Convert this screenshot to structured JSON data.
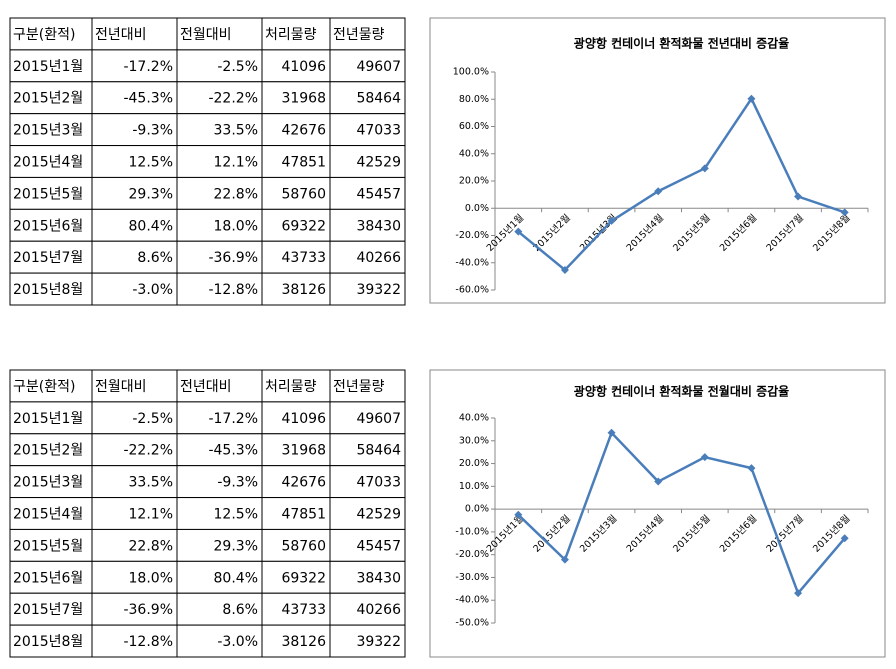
{
  "tables": [
    {
      "header": [
        "구분(환적)",
        "전년대비",
        "전월대비",
        "처리물량",
        "전년물량"
      ],
      "rows": [
        [
          "2015년1월",
          "-17.2%",
          "-2.5%",
          "41096",
          "49607"
        ],
        [
          "2015년2월",
          "-45.3%",
          "-22.2%",
          "31968",
          "58464"
        ],
        [
          "2015년3월",
          "-9.3%",
          "33.5%",
          "42676",
          "47033"
        ],
        [
          "2015년4월",
          "12.5%",
          "12.1%",
          "47851",
          "42529"
        ],
        [
          "2015년5월",
          "29.3%",
          "22.8%",
          "58760",
          "45457"
        ],
        [
          "2015년6월",
          "80.4%",
          "18.0%",
          "69322",
          "38430"
        ],
        [
          "2015년7월",
          "8.6%",
          "-36.9%",
          "43733",
          "40266"
        ],
        [
          "2015년8월",
          "-3.0%",
          "-12.8%",
          "38126",
          "39322"
        ]
      ]
    },
    {
      "header": [
        "구분(환적)",
        "전월대비",
        "전년대비",
        "처리물량",
        "전년물량"
      ],
      "rows": [
        [
          "2015년1월",
          "-2.5%",
          "-17.2%",
          "41096",
          "49607"
        ],
        [
          "2015년2월",
          "-22.2%",
          "-45.3%",
          "31968",
          "58464"
        ],
        [
          "2015년3월",
          "33.5%",
          "-9.3%",
          "42676",
          "47033"
        ],
        [
          "2015년4월",
          "12.1%",
          "12.5%",
          "47851",
          "42529"
        ],
        [
          "2015년5월",
          "22.8%",
          "29.3%",
          "58760",
          "45457"
        ],
        [
          "2015년6월",
          "18.0%",
          "80.4%",
          "69322",
          "38430"
        ],
        [
          "2015년7월",
          "-36.9%",
          "8.6%",
          "43733",
          "40266"
        ],
        [
          "2015년8월",
          "-12.8%",
          "-3.0%",
          "38126",
          "39322"
        ]
      ]
    }
  ],
  "chart_data": [
    {
      "type": "line",
      "title": "광양항 컨테이너 환적화물 전년대비 증감율",
      "categories": [
        "2015년1월",
        "2015년2월",
        "2015년3월",
        "2015년4월",
        "2015년5월",
        "2015년6월",
        "2015년7월",
        "2015년8월"
      ],
      "values": [
        -17.2,
        -45.3,
        -9.3,
        12.5,
        29.3,
        80.4,
        8.6,
        -3.0
      ],
      "color": "#4a7ebb",
      "ylim": [
        -60,
        100
      ],
      "yticks": [
        {
          "value": -60,
          "label": "-60.0%"
        },
        {
          "value": -40,
          "label": "-40.0%"
        },
        {
          "value": -20,
          "label": "-20.0%"
        },
        {
          "value": 0,
          "label": "0.0%"
        },
        {
          "value": 20,
          "label": "20.0%"
        },
        {
          "value": 40,
          "label": "40.0%"
        },
        {
          "value": 60,
          "label": "60.0%"
        },
        {
          "value": 80,
          "label": "80.0%"
        },
        {
          "value": 100,
          "label": "100.0%"
        }
      ]
    },
    {
      "type": "line",
      "title": "광양항 컨테이너 환적화물 전월대비 증감율",
      "categories": [
        "2015년1월",
        "2015년2월",
        "2015년3월",
        "2015년4월",
        "2015년5월",
        "2015년6월",
        "2015년7월",
        "2015년8월"
      ],
      "values": [
        -2.5,
        -22.2,
        33.5,
        12.1,
        22.8,
        18.0,
        -36.9,
        -12.8
      ],
      "color": "#4a7ebb",
      "ylim": [
        -50,
        40
      ],
      "yticks": [
        {
          "value": -50,
          "label": "-50.0%"
        },
        {
          "value": -40,
          "label": "-40.0%"
        },
        {
          "value": -30,
          "label": "-30.0%"
        },
        {
          "value": -20,
          "label": "-20.0%"
        },
        {
          "value": -10,
          "label": "-10.0%"
        },
        {
          "value": 0,
          "label": "0.0%"
        },
        {
          "value": 10,
          "label": "10.0%"
        },
        {
          "value": 20,
          "label": "20.0%"
        },
        {
          "value": 30,
          "label": "30.0%"
        },
        {
          "value": 40,
          "label": "40.0%"
        }
      ]
    }
  ]
}
